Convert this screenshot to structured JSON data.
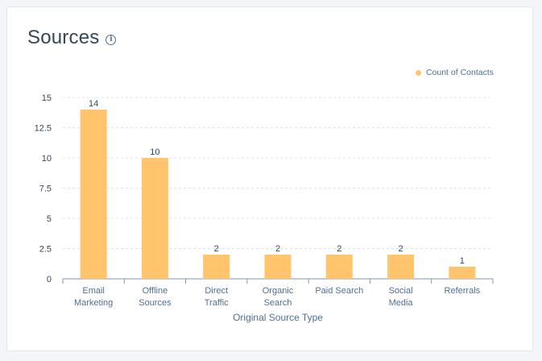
{
  "header": {
    "title": "Sources"
  },
  "colors": {
    "bar": "#ffc46c",
    "grid": "#dfe3eb",
    "text": "#33475b",
    "muted": "#516f90"
  },
  "icons": {
    "info": "info-icon"
  },
  "chart_data": {
    "type": "bar",
    "categories": [
      [
        "Email",
        "Marketing"
      ],
      [
        "Offline",
        "Sources"
      ],
      [
        "Direct",
        "Traffic"
      ],
      [
        "Organic",
        "Search"
      ],
      [
        "Paid Search"
      ],
      [
        "Social",
        "Media"
      ],
      [
        "Referrals"
      ]
    ],
    "series": [
      {
        "name": "Count of Contacts",
        "values": [
          14,
          10,
          2,
          2,
          2,
          2,
          1
        ]
      }
    ],
    "data_labels": [
      "14",
      "10",
      "2",
      "2",
      "2",
      "2",
      "1"
    ],
    "yticks": [
      "0",
      "2.5",
      "5",
      "7.5",
      "10",
      "12.5",
      "15"
    ],
    "ylim": [
      0,
      15
    ],
    "xlabel": "Original Source Type",
    "ylabel": "",
    "grid": true,
    "legend_position": "top-right"
  }
}
